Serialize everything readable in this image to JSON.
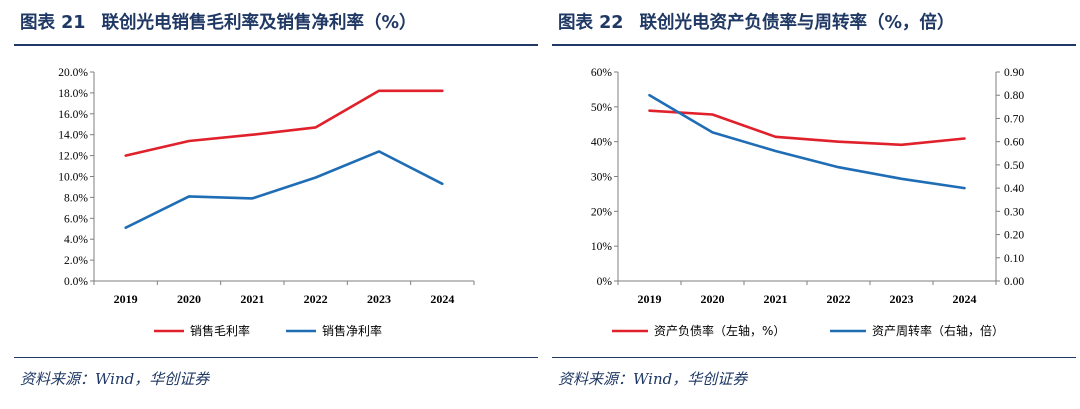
{
  "panels": [
    {
      "title": "联创光电销售毛利率及销售净利率（%）",
      "figure_no": "图表 21",
      "source": "资料来源：Wind，华创证券"
    },
    {
      "title": "联创光电资产负债率与周转率（%，倍）",
      "figure_no": "图表 22",
      "source": "资料来源：Wind，华创证券"
    }
  ],
  "chart_data": [
    {
      "type": "line",
      "title": "联创光电销售毛利率及销售净利率（%）",
      "categories": [
        "2019",
        "2020",
        "2021",
        "2022",
        "2023",
        "2024"
      ],
      "ylim": [
        0,
        20
      ],
      "ytick_step": 2,
      "ytick_format": "percent1",
      "legend_position": "bottom",
      "grid": false,
      "series": [
        {
          "name": "销售毛利率",
          "axis": "left",
          "color": "#e0202a",
          "values": [
            12.0,
            13.4,
            14.0,
            14.7,
            18.2,
            18.2
          ]
        },
        {
          "name": "销售净利率",
          "axis": "left",
          "color": "#1f6db5",
          "values": [
            5.1,
            8.1,
            7.9,
            9.9,
            12.4,
            9.3
          ]
        }
      ]
    },
    {
      "type": "line",
      "title": "联创光电资产负债率与周转率（%，倍）",
      "categories": [
        "2019",
        "2020",
        "2021",
        "2022",
        "2023",
        "2024"
      ],
      "ylim": [
        0,
        60
      ],
      "ytick_step": 10,
      "ytick_format": "percent0",
      "y2lim": [
        0,
        0.9
      ],
      "y2tick_step": 0.1,
      "y2tick_format": "fixed2",
      "legend_position": "bottom",
      "grid": false,
      "series": [
        {
          "name": "资产负债率（左轴，%）",
          "axis": "left",
          "color": "#e0202a",
          "values": [
            48.9,
            47.8,
            41.4,
            40.0,
            39.1,
            40.9
          ]
        },
        {
          "name": "资产周转率（右轴，倍）",
          "axis": "right",
          "color": "#1f6db5",
          "values": [
            0.8,
            0.64,
            0.56,
            0.49,
            0.44,
            0.4
          ]
        }
      ]
    }
  ]
}
